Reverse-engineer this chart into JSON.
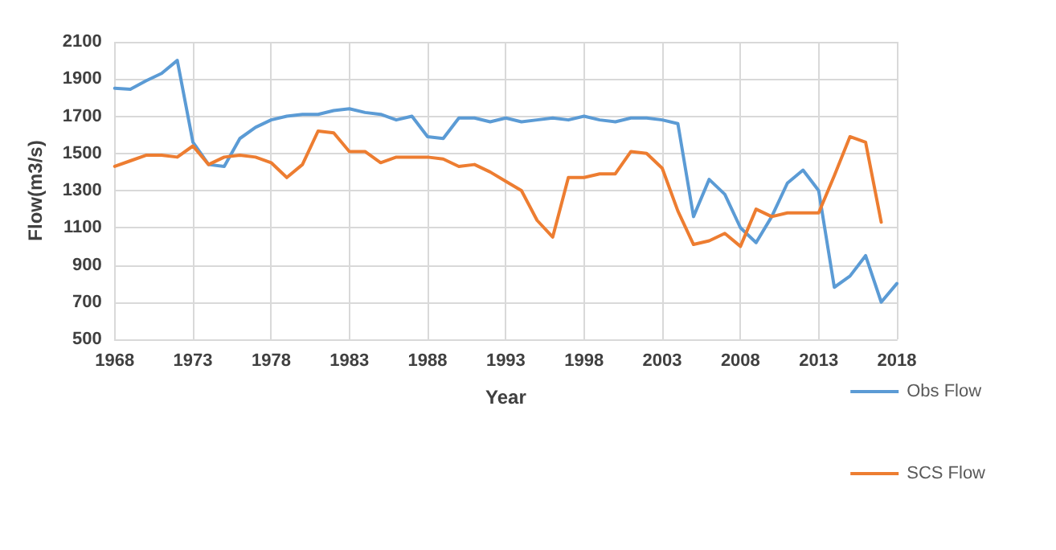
{
  "chart_data": {
    "type": "line",
    "xlabel": "Year",
    "ylabel": "Flow(m3/s)",
    "x": [
      1968,
      1969,
      1970,
      1971,
      1972,
      1973,
      1974,
      1975,
      1976,
      1977,
      1978,
      1979,
      1980,
      1981,
      1982,
      1983,
      1984,
      1985,
      1986,
      1987,
      1988,
      1989,
      1990,
      1991,
      1992,
      1993,
      1994,
      1995,
      1996,
      1997,
      1998,
      1999,
      2000,
      2001,
      2002,
      2003,
      2004,
      2005,
      2006,
      2007,
      2008,
      2009,
      2010,
      2011,
      2012,
      2013,
      2014,
      2015,
      2016,
      2017,
      2018
    ],
    "series": [
      {
        "name": "Obs Flow",
        "color": "#5b9bd5",
        "values": [
          1850,
          1845,
          1890,
          1930,
          2000,
          1560,
          1440,
          1430,
          1580,
          1640,
          1680,
          1700,
          1710,
          1710,
          1730,
          1740,
          1720,
          1710,
          1680,
          1700,
          1590,
          1580,
          1690,
          1690,
          1670,
          1690,
          1670,
          1680,
          1690,
          1680,
          1700,
          1680,
          1670,
          1690,
          1690,
          1680,
          1660,
          1160,
          1360,
          1280,
          1100,
          1020,
          1160,
          1340,
          1410,
          1300,
          780,
          840,
          950,
          700,
          800
        ]
      },
      {
        "name": "SCS Flow",
        "color": "#ed7d31",
        "values": [
          1430,
          1460,
          1490,
          1490,
          1480,
          1540,
          1440,
          1480,
          1490,
          1480,
          1450,
          1370,
          1440,
          1620,
          1610,
          1510,
          1510,
          1450,
          1480,
          1480,
          1480,
          1470,
          1430,
          1440,
          1400,
          1350,
          1300,
          1140,
          1050,
          1370,
          1370,
          1390,
          1390,
          1510,
          1500,
          1420,
          1190,
          1010,
          1030,
          1070,
          1000,
          1200,
          1160,
          1180,
          1180,
          1180,
          1380,
          1590,
          1560,
          1130,
          null
        ]
      }
    ],
    "xlim": [
      1968,
      2018
    ],
    "xticks": [
      1968,
      1973,
      1978,
      1983,
      1988,
      1993,
      1998,
      2003,
      2008,
      2013,
      2018
    ],
    "ylim": [
      500,
      2100
    ],
    "yticks": [
      500,
      700,
      900,
      1100,
      1300,
      1500,
      1700,
      1900,
      2100
    ],
    "grid": true,
    "legend": "right",
    "marker": "none",
    "line_style": "solid"
  }
}
